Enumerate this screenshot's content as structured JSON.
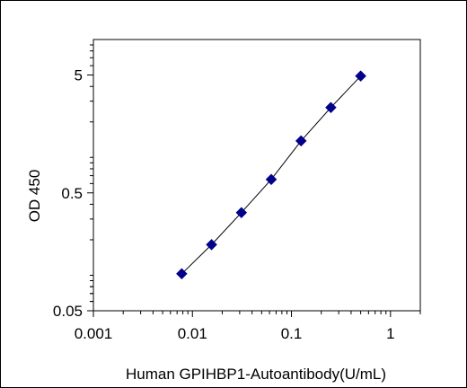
{
  "chart_data": {
    "type": "scatter",
    "title": "",
    "xlabel": "Human GPIHBP1-Autoantibody(U/mL)",
    "ylabel": "OD 450",
    "x_scale": "log",
    "y_scale": "log",
    "xlim": [
      0.001,
      2
    ],
    "ylim": [
      0.05,
      10
    ],
    "x_ticks": [
      0.001,
      0.01,
      0.1,
      1
    ],
    "x_tick_labels": [
      "0.001",
      "0.01",
      "0.1",
      "1"
    ],
    "y_ticks": [
      0.05,
      0.5,
      5
    ],
    "y_tick_labels": [
      "0.05",
      "0.5",
      "5"
    ],
    "grid": false,
    "legend": "none",
    "series": [
      {
        "marker": "diamond",
        "marker_color": "#00008B",
        "line_color": "#000000",
        "x": [
          0.0078,
          0.0156,
          0.03125,
          0.0625,
          0.125,
          0.25,
          0.5
        ],
        "y": [
          0.103,
          0.182,
          0.34,
          0.65,
          1.38,
          2.65,
          4.9
        ]
      }
    ]
  }
}
